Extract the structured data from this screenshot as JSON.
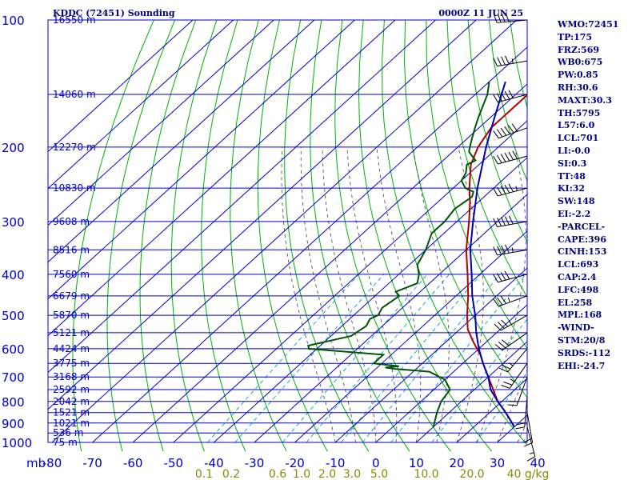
{
  "header": {
    "station": "KDDC (72451) Sounding",
    "time": "0000Z 11 JUN 25"
  },
  "chart_data": {
    "type": "line",
    "title": "KDDC (72451) Sounding",
    "subtitle": "0000Z 11 JUN 25",
    "x_unit_label": "mb",
    "temp_ticks": [
      -80,
      -70,
      -60,
      -50,
      -40,
      -30,
      -20,
      -10,
      0,
      10,
      20,
      30,
      40
    ],
    "pressure_levels": [
      100,
      200,
      300,
      400,
      500,
      600,
      700,
      800,
      900,
      1000
    ],
    "height_labels": [
      {
        "p": 100,
        "text": "16550 m"
      },
      {
        "p": 150,
        "text": "14060 m"
      },
      {
        "p": 200,
        "text": "12270 m"
      },
      {
        "p": 250,
        "text": "10830 m"
      },
      {
        "p": 300,
        "text": "9608 m"
      },
      {
        "p": 350,
        "text": "8516 m"
      },
      {
        "p": 400,
        "text": "7560 m"
      },
      {
        "p": 450,
        "text": "6679 m"
      },
      {
        "p": 500,
        "text": "5870 m"
      },
      {
        "p": 550,
        "text": "5121 m"
      },
      {
        "p": 600,
        "text": "4424 m"
      },
      {
        "p": 650,
        "text": "3775 m"
      },
      {
        "p": 700,
        "text": "3168 m"
      },
      {
        "p": 750,
        "text": "2592 m"
      },
      {
        "p": 800,
        "text": "2042 m"
      },
      {
        "p": 850,
        "text": "1521 m"
      },
      {
        "p": 900,
        "text": "1021 m"
      },
      {
        "p": 950,
        "text": "536 m"
      },
      {
        "p": 1000,
        "text": "75 m"
      }
    ],
    "mixing_ratio_labels": [
      "0.1",
      "0.2",
      "0.6",
      "1.0",
      "2.0",
      "3.0",
      "5.0",
      "10.0",
      "20.0",
      "40 g/kg"
    ],
    "series": [
      {
        "role": "temperature",
        "color": "#b00000",
        "points": [
          [
            919,
            30
          ],
          [
            850,
            24
          ],
          [
            800,
            19
          ],
          [
            700,
            10
          ],
          [
            660,
            6
          ],
          [
            620,
            2
          ],
          [
            580,
            -3
          ],
          [
            540,
            -8
          ],
          [
            500,
            -12
          ],
          [
            450,
            -17
          ],
          [
            400,
            -23
          ],
          [
            350,
            -30
          ],
          [
            300,
            -37
          ],
          [
            270,
            -42
          ],
          [
            250,
            -46
          ],
          [
            220,
            -52
          ],
          [
            200,
            -55
          ],
          [
            180,
            -57
          ],
          [
            160,
            -57
          ],
          [
            150,
            -57
          ],
          [
            140,
            -58
          ],
          [
            130,
            -58
          ],
          [
            120,
            -58
          ],
          [
            110,
            -58
          ],
          [
            100,
            -57
          ]
        ]
      },
      {
        "role": "dewpoint",
        "color": "#005500",
        "points": [
          [
            919,
            10
          ],
          [
            850,
            7
          ],
          [
            800,
            5
          ],
          [
            750,
            4
          ],
          [
            710,
            0
          ],
          [
            700,
            -2
          ],
          [
            680,
            -6
          ],
          [
            670,
            -15
          ],
          [
            665,
            -18
          ],
          [
            660,
            -15
          ],
          [
            650,
            -22
          ],
          [
            620,
            -22
          ],
          [
            600,
            -42
          ],
          [
            590,
            -43
          ],
          [
            560,
            -35
          ],
          [
            530,
            -34
          ],
          [
            510,
            -35
          ],
          [
            500,
            -34
          ],
          [
            480,
            -35
          ],
          [
            450,
            -34
          ],
          [
            440,
            -36
          ],
          [
            420,
            -33
          ],
          [
            400,
            -35
          ],
          [
            380,
            -38
          ],
          [
            350,
            -40
          ],
          [
            320,
            -43
          ],
          [
            300,
            -43
          ],
          [
            280,
            -44
          ],
          [
            262,
            -43
          ],
          [
            255,
            -44
          ],
          [
            250,
            -47
          ],
          [
            240,
            -50
          ],
          [
            230,
            -51
          ],
          [
            220,
            -53
          ],
          [
            215,
            -52
          ],
          [
            210,
            -54
          ],
          [
            205,
            -56
          ],
          [
            200,
            -57
          ],
          [
            190,
            -59
          ],
          [
            180,
            -61
          ],
          [
            170,
            -63
          ],
          [
            150,
            -67
          ],
          [
            140,
            -70
          ]
        ]
      },
      {
        "role": "parcel",
        "color": "#0000b0",
        "points": [
          [
            919,
            30
          ],
          [
            850,
            24
          ],
          [
            800,
            19
          ],
          [
            750,
            14
          ],
          [
            700,
            10
          ],
          [
            650,
            5
          ],
          [
            600,
            0
          ],
          [
            550,
            -5
          ],
          [
            500,
            -10
          ],
          [
            450,
            -16
          ],
          [
            400,
            -22
          ],
          [
            350,
            -29
          ],
          [
            300,
            -36
          ],
          [
            250,
            -44
          ],
          [
            200,
            -53
          ],
          [
            170,
            -59
          ],
          [
            140,
            -66
          ]
        ]
      }
    ],
    "wind_barbs": [
      {
        "p": 920,
        "dir": 165,
        "spd": 15
      },
      {
        "p": 850,
        "dir": 170,
        "spd": 20
      },
      {
        "p": 780,
        "dir": 185,
        "spd": 20
      },
      {
        "p": 700,
        "dir": 200,
        "spd": 20
      },
      {
        "p": 650,
        "dir": 215,
        "spd": 25
      },
      {
        "p": 600,
        "dir": 220,
        "spd": 25
      },
      {
        "p": 550,
        "dir": 235,
        "spd": 30
      },
      {
        "p": 500,
        "dir": 240,
        "spd": 35
      },
      {
        "p": 450,
        "dir": 250,
        "spd": 35
      },
      {
        "p": 400,
        "dir": 255,
        "spd": 40
      },
      {
        "p": 350,
        "dir": 260,
        "spd": 45
      },
      {
        "p": 300,
        "dir": 260,
        "spd": 50
      },
      {
        "p": 250,
        "dir": 255,
        "spd": 55
      },
      {
        "p": 210,
        "dir": 255,
        "spd": 60
      },
      {
        "p": 180,
        "dir": 250,
        "spd": 60
      },
      {
        "p": 150,
        "dir": 255,
        "spd": 50
      },
      {
        "p": 125,
        "dir": 260,
        "spd": 45
      },
      {
        "p": 100,
        "dir": 265,
        "spd": 40
      }
    ]
  },
  "indices": [
    "WMO:72451",
    "TP:175",
    "FRZ:569",
    "WB0:675",
    "PW:0.85",
    "RH:30.6",
    "MAXT:30.3",
    "TH:5795",
    "L57:6.0",
    "LCL:701",
    "LI:-0.0",
    "SI:0.3",
    "TT:48",
    "KI:32",
    "SW:148",
    "EI:-2.2",
    "-PARCEL-",
    "CAPE:396",
    "CINH:153",
    "LCL:693",
    "CAP:2.4",
    "LFC:498",
    "EL:258",
    "MPL:168",
    "-WIND-",
    "STM:20/8",
    "SRDS:-112",
    "EHI:-24.7"
  ],
  "colors": {
    "isobar": "#0000cd",
    "isotherm": "#0000cd",
    "dry_adiabat": "#00b000",
    "moist_adiabat": "#555555",
    "mixing_ratio": "#00a0d0",
    "mix_label": "#8b8b00"
  }
}
